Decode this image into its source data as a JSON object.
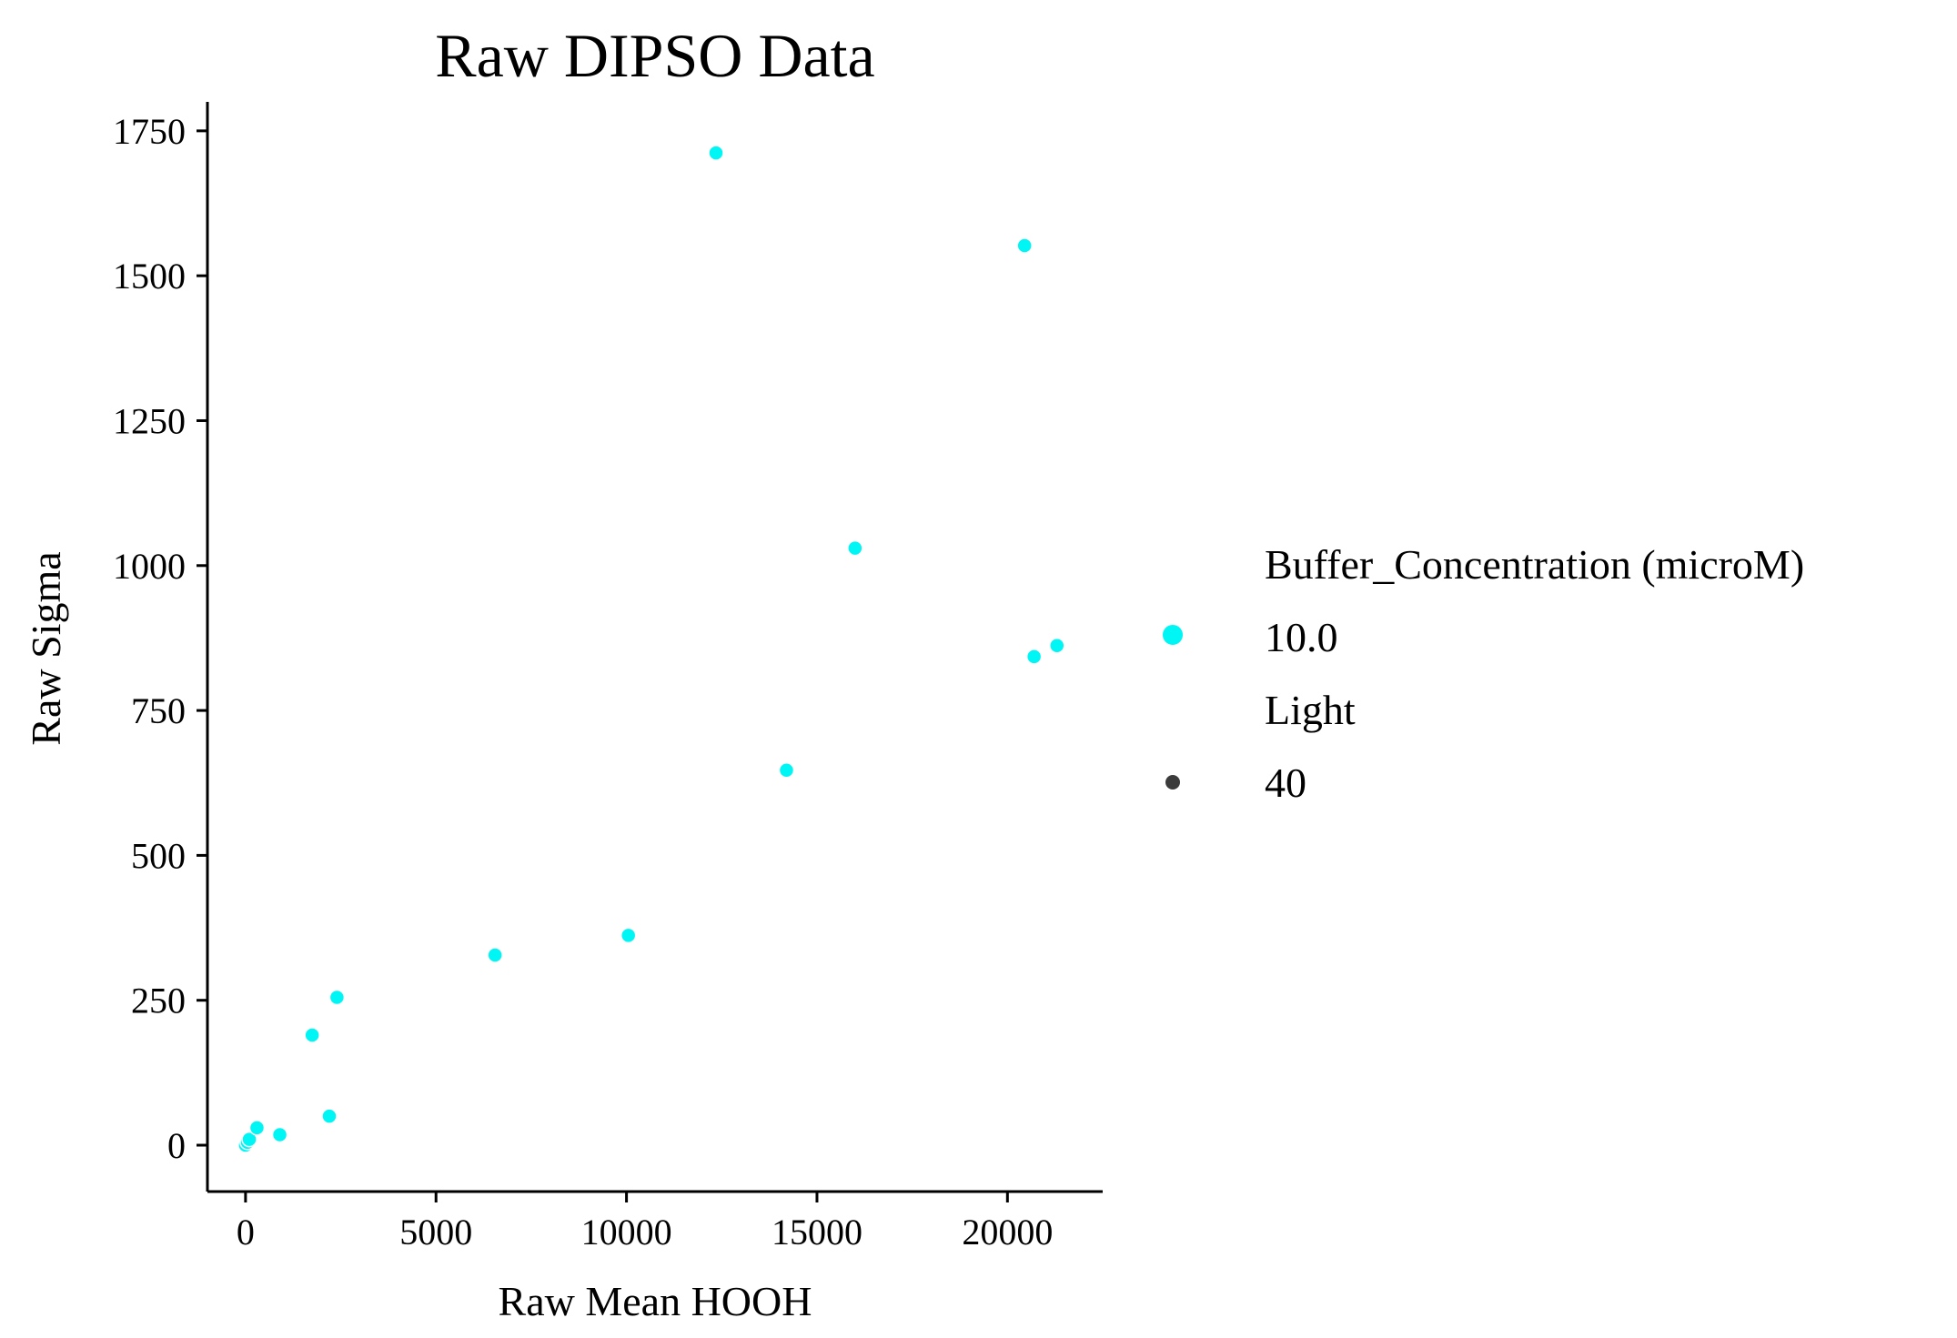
{
  "chart_data": {
    "type": "scatter",
    "title": "Raw DIPSO Data",
    "xlabel": "Raw Mean HOOH",
    "ylabel": "Raw Sigma",
    "xlim": [
      -1000,
      22500
    ],
    "ylim": [
      -80,
      1800
    ],
    "xticks": [
      0,
      5000,
      10000,
      15000,
      20000
    ],
    "yticks": [
      0,
      250,
      500,
      750,
      1000,
      1250,
      1500,
      1750
    ],
    "grid": false,
    "legend_placement": "right",
    "point_color": "#00f5f5",
    "series": [
      {
        "name": "10.0",
        "x": [
          0,
          50,
          100,
          300,
          900,
          1750,
          2200,
          2400,
          6550,
          10050,
          12350,
          14200,
          16000,
          20450,
          20700,
          21300
        ],
        "y": [
          0,
          5,
          10,
          30,
          18,
          190,
          50,
          255,
          328,
          362,
          1712,
          647,
          1030,
          1552,
          843,
          862
        ]
      }
    ],
    "legend": {
      "hue_title": "Buffer_Concentration (microM)",
      "hue_entry": "10.0",
      "size_title": "Light",
      "size_entry": "40",
      "hue_color": "#00f5f5",
      "size_color": "#3b3b3b"
    }
  }
}
